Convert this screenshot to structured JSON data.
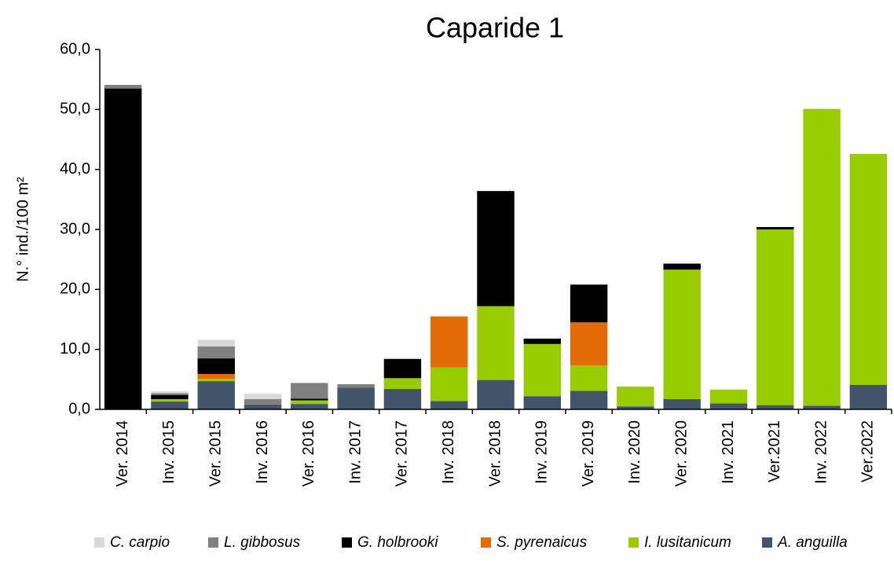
{
  "chart_data": {
    "type": "stacked-bar",
    "title": "Caparide 1",
    "y_label": "N.° ind./100 m²",
    "categories": [
      "Ver. 2014",
      "Inv. 2015",
      "Ver. 2015",
      "Inv. 2016",
      "Ver. 2016",
      "Inv. 2017",
      "Ver. 2017",
      "Inv. 2018",
      "Ver. 2018",
      "Inv. 2019",
      "Ver. 2019",
      "Inv. 2020",
      "Ver. 2020",
      "Inv. 2021",
      "Ver.2021",
      "Inv. 2022",
      "Ver.2022"
    ],
    "series": [
      {
        "name": "C. carpio",
        "color": "#d9d9d9",
        "values": [
          0,
          0.3,
          1.1,
          0.9,
          0,
          0,
          0.2,
          0,
          0,
          0,
          0,
          0,
          0,
          0,
          0,
          0,
          0
        ]
      },
      {
        "name": "L. gibbosus",
        "color": "#808080",
        "values": [
          0.6,
          0.3,
          2.0,
          0.9,
          2.6,
          0.6,
          0,
          0,
          0,
          0,
          0,
          0,
          0,
          0,
          0,
          0,
          0
        ]
      },
      {
        "name": "G. holbrooki",
        "color": "#000000",
        "values": [
          53.5,
          0.7,
          2.6,
          0,
          0.3,
          0,
          3.2,
          0,
          19.2,
          0.9,
          6.3,
          0,
          1.0,
          0,
          0.4,
          0,
          0
        ]
      },
      {
        "name": "S. pyrenaicus",
        "color": "#e36c0a",
        "values": [
          0,
          0,
          0.8,
          0,
          0,
          0,
          0,
          8.5,
          0,
          0,
          7.2,
          0,
          0,
          0,
          0,
          0,
          0
        ]
      },
      {
        "name": "I. lusitanicum",
        "color": "#99cc00",
        "values": [
          0,
          0.4,
          0.4,
          0,
          0.6,
          0,
          1.8,
          5.6,
          12.3,
          8.7,
          4.2,
          3.3,
          21.6,
          2.3,
          29.3,
          49.5,
          38.5
        ]
      },
      {
        "name": "A. anguilla",
        "color": "#44546a",
        "values": [
          0,
          1.3,
          4.7,
          0.8,
          0.9,
          3.6,
          3.4,
          1.4,
          4.9,
          2.2,
          3.1,
          0.5,
          1.7,
          1.0,
          0.7,
          0.6,
          4.1
        ]
      }
    ],
    "ylim": [
      0,
      60
    ],
    "yticks": [
      {
        "value": 0,
        "label": "0,0"
      },
      {
        "value": 10,
        "label": "10,0"
      },
      {
        "value": 20,
        "label": "20,0"
      },
      {
        "value": 30,
        "label": "30,0"
      },
      {
        "value": 40,
        "label": "40,0"
      },
      {
        "value": 50,
        "label": "50,0"
      },
      {
        "value": 60,
        "label": "60,0"
      }
    ],
    "legend": "bottom"
  }
}
